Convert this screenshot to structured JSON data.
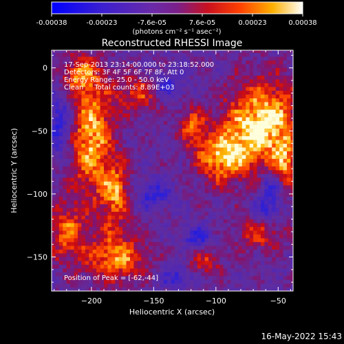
{
  "colorbar": {
    "ticks": [
      "-0.00038",
      "-0.00023",
      "-7.6e-05",
      "7.6e-05",
      "0.00023",
      "0.00038"
    ],
    "unit_label": "(photons cm⁻² s⁻¹ asec⁻²)"
  },
  "plot": {
    "title": "Reconstructed RHESSI Image",
    "info_lines": [
      "17-Sep-2013 23:14:00.000 to 23:18:52.000",
      "Detectors: 3F 4F 5F 6F 7F 8F, Att 0",
      "Energy Range: 25.0 - 50.0 keV",
      "Clean     Total counts: 8.89E+03"
    ],
    "peak_label": "Position of Peak = [-62,-44]"
  },
  "timestamp": "16-May-2022 15:43",
  "chart_data": {
    "type": "heatmap",
    "title": "Reconstructed RHESSI Image",
    "xlabel": "Heliocentric X (arcsec)",
    "ylabel": "Heliocentric Y (arcsec)",
    "xlim": [
      -232,
      -38
    ],
    "ylim": [
      -177,
      14
    ],
    "x_ticks": [
      -200,
      -150,
      -100,
      -50
    ],
    "y_ticks": [
      0,
      -50,
      -100,
      -150
    ],
    "x_tick_labels": [
      "−200",
      "−150",
      "−100",
      "−50"
    ],
    "y_tick_labels": [
      "0",
      "−50",
      "−100",
      "−150"
    ],
    "colorbar_range": [
      -0.00038,
      0.00038
    ],
    "colormap": "blue-purple-red-yellow-white",
    "peak": [
      -62,
      -44
    ],
    "grid": false,
    "hot_regions": [
      {
        "x": -200,
        "y": -55,
        "rx": 18,
        "ry": 50,
        "level": 0.85
      },
      {
        "x": -180,
        "y": -100,
        "rx": 12,
        "ry": 25,
        "level": 0.7
      },
      {
        "x": -62,
        "y": -44,
        "rx": 30,
        "ry": 35,
        "level": 1.0
      },
      {
        "x": -95,
        "y": -70,
        "rx": 22,
        "ry": 22,
        "level": 0.8
      },
      {
        "x": -120,
        "y": -45,
        "rx": 10,
        "ry": 15,
        "level": 0.6
      },
      {
        "x": -160,
        "y": -20,
        "rx": 20,
        "ry": 15,
        "level": 0.6
      },
      {
        "x": -180,
        "y": -150,
        "rx": 25,
        "ry": 20,
        "level": 0.75
      },
      {
        "x": -220,
        "y": -130,
        "rx": 15,
        "ry": 25,
        "level": 0.6
      },
      {
        "x": -65,
        "y": -130,
        "rx": 20,
        "ry": 15,
        "level": 0.55
      },
      {
        "x": -110,
        "y": -155,
        "rx": 15,
        "ry": 12,
        "level": 0.5
      },
      {
        "x": -210,
        "y": -5,
        "rx": 15,
        "ry": 15,
        "level": 0.55
      },
      {
        "x": -45,
        "y": -80,
        "rx": 10,
        "ry": 20,
        "level": 0.6
      }
    ],
    "cold_regions": [
      {
        "x": -225,
        "y": -45,
        "rx": 10,
        "ry": 25,
        "level": -0.6
      },
      {
        "x": -140,
        "y": -15,
        "rx": 15,
        "ry": 12,
        "level": -0.55
      },
      {
        "x": -150,
        "y": -100,
        "rx": 15,
        "ry": 12,
        "level": -0.5
      },
      {
        "x": -55,
        "y": -95,
        "rx": 10,
        "ry": 15,
        "level": -0.6
      },
      {
        "x": -60,
        "y": -115,
        "rx": 12,
        "ry": 10,
        "level": -0.55
      },
      {
        "x": -115,
        "y": -135,
        "rx": 12,
        "ry": 10,
        "level": -0.5
      },
      {
        "x": -130,
        "y": -165,
        "rx": 15,
        "ry": 10,
        "level": -0.5
      }
    ]
  }
}
